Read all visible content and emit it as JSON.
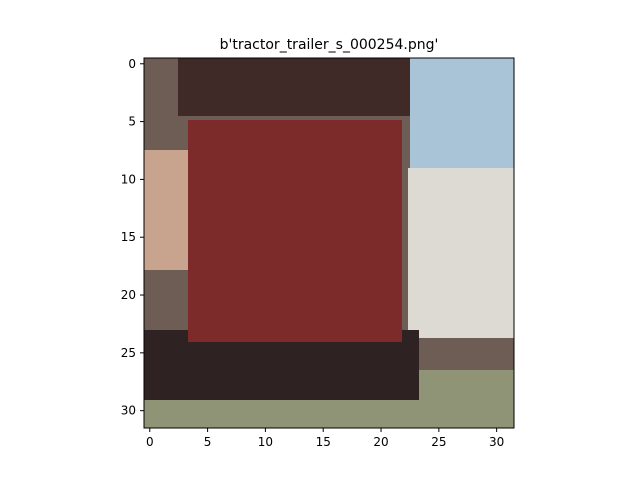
{
  "chart_data": {
    "type": "heatmap",
    "title": "b'tractor_trailer_s_000254.png'",
    "xlabel": "",
    "ylabel": "",
    "x_ticks": [
      0,
      5,
      10,
      15,
      20,
      25,
      30
    ],
    "y_ticks": [
      0,
      5,
      10,
      15,
      20,
      25,
      30
    ],
    "xlim": [
      -0.5,
      31.5
    ],
    "ylim": [
      31.5,
      -0.5
    ],
    "image_size": [
      32,
      32
    ],
    "regions": [
      {
        "label": "background",
        "color": "#6e5d55"
      },
      {
        "label": "dark-top-band",
        "color": "#3f2a28"
      },
      {
        "label": "red-trailer-panel",
        "color": "#7d2b2a"
      },
      {
        "label": "pale-left-strip",
        "color": "#c8a48f"
      },
      {
        "label": "sky-top-right",
        "color": "#a9c4d6"
      },
      {
        "label": "white-right-area",
        "color": "#dcdad2"
      },
      {
        "label": "dark-bottom-band",
        "color": "#2e2223"
      },
      {
        "label": "olive-ground",
        "color": "#8f9476"
      }
    ]
  }
}
